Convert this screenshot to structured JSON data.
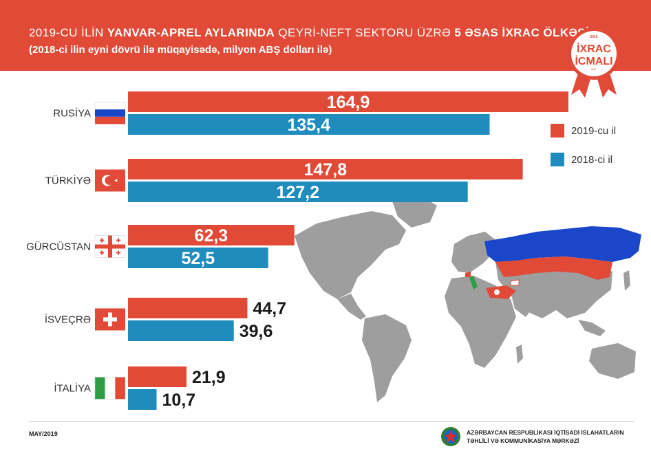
{
  "header": {
    "title_part1": "2019-CU İLİN",
    "title_bold": "YANVAR-APREL AYLARINDA",
    "title_part2": "QEYRİ-NEFT SEKTORU ÜZRƏ",
    "title_bold2": "5 ƏSAS İXRAC ÖLKƏSİ",
    "subtitle": "(2018-ci ilin eyni dövrü ilə müqayisədə, milyon ABŞ dolları ilə)"
  },
  "badge": {
    "year": "2019",
    "line1": "İXRAC",
    "line2": "İCMALI",
    "month": "MAY"
  },
  "colors": {
    "header_red": "#e04a37",
    "bar_2019": "#e04a37",
    "bar_2018": "#1f8cbd",
    "map_gray": "#9e9e9e",
    "russia_blue": "#1a47c9"
  },
  "chart_data": {
    "type": "bar",
    "orientation": "horizontal",
    "categories": [
      "RUSİYA",
      "TÜRKİYƏ",
      "GÜRCÜSTAN",
      "İSVEÇRƏ",
      "İTALİYA"
    ],
    "series": [
      {
        "name": "2019-cu il",
        "values": [
          164.9,
          147.8,
          62.3,
          44.7,
          21.9
        ],
        "labels": [
          "164,9",
          "147,8",
          "62,3",
          "44,7",
          "21,9"
        ]
      },
      {
        "name": "2018-ci il",
        "values": [
          135.4,
          127.2,
          52.5,
          39.6,
          10.7
        ],
        "labels": [
          "135,4",
          "127,2",
          "52,5",
          "39,6",
          "10,7"
        ]
      }
    ],
    "flags": [
      "russia-flag",
      "turkey-flag",
      "georgia-flag",
      "switzerland-flag",
      "italy-flag"
    ],
    "legend_position": "right"
  },
  "legend": {
    "items": [
      "2019-cu il",
      "2018-ci il"
    ]
  },
  "footer": {
    "date": "MAY/2019",
    "org_line1": "AZƏRBAYCAN RESPUBLİKASI İQTİSADİ İSLAHATLARIN",
    "org_line2": "TƏHLİLİ VƏ KOMMUNİKASİYA MƏRKƏZİ"
  }
}
